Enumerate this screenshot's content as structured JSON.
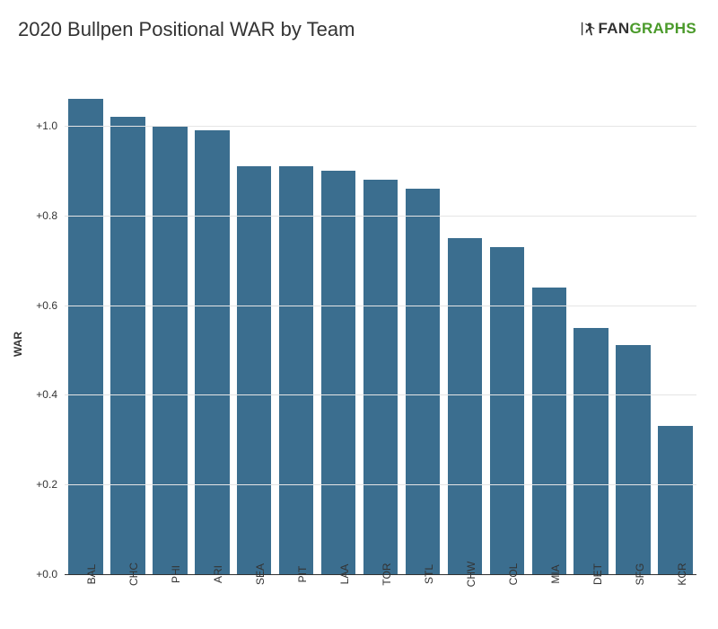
{
  "title": "2020 Bullpen Positional WAR by Team",
  "logo": {
    "text_dark": "FAN",
    "text_green": "GRAPHS",
    "dark_color": "#333333",
    "green_color": "#4a9a2a",
    "icon_color": "#333333"
  },
  "chart": {
    "type": "bar",
    "ylabel": "WAR",
    "bar_color": "#3b6e8f",
    "grid_color": "#e5e5e5",
    "axis_color": "#333333",
    "background_color": "#ffffff",
    "ylim": [
      0.0,
      1.1
    ],
    "yticks": [
      0.0,
      0.2,
      0.4,
      0.6,
      0.8,
      1.0
    ],
    "ytick_labels": [
      "+0.0",
      "+0.2",
      "+0.4",
      "+0.6",
      "+0.8",
      "+1.0"
    ],
    "title_fontsize": 22,
    "label_fontsize": 12,
    "tick_fontsize": 12,
    "bar_width": 0.82,
    "categories": [
      "BAL",
      "CHC",
      "PHI",
      "ARI",
      "SEA",
      "PIT",
      "LAA",
      "TOR",
      "STL",
      "CHW",
      "COL",
      "MIA",
      "DET",
      "SFG",
      "KCR"
    ],
    "values": [
      1.06,
      1.02,
      1.0,
      0.99,
      0.91,
      0.91,
      0.9,
      0.88,
      0.86,
      0.75,
      0.73,
      0.64,
      0.55,
      0.51,
      0.33
    ]
  }
}
